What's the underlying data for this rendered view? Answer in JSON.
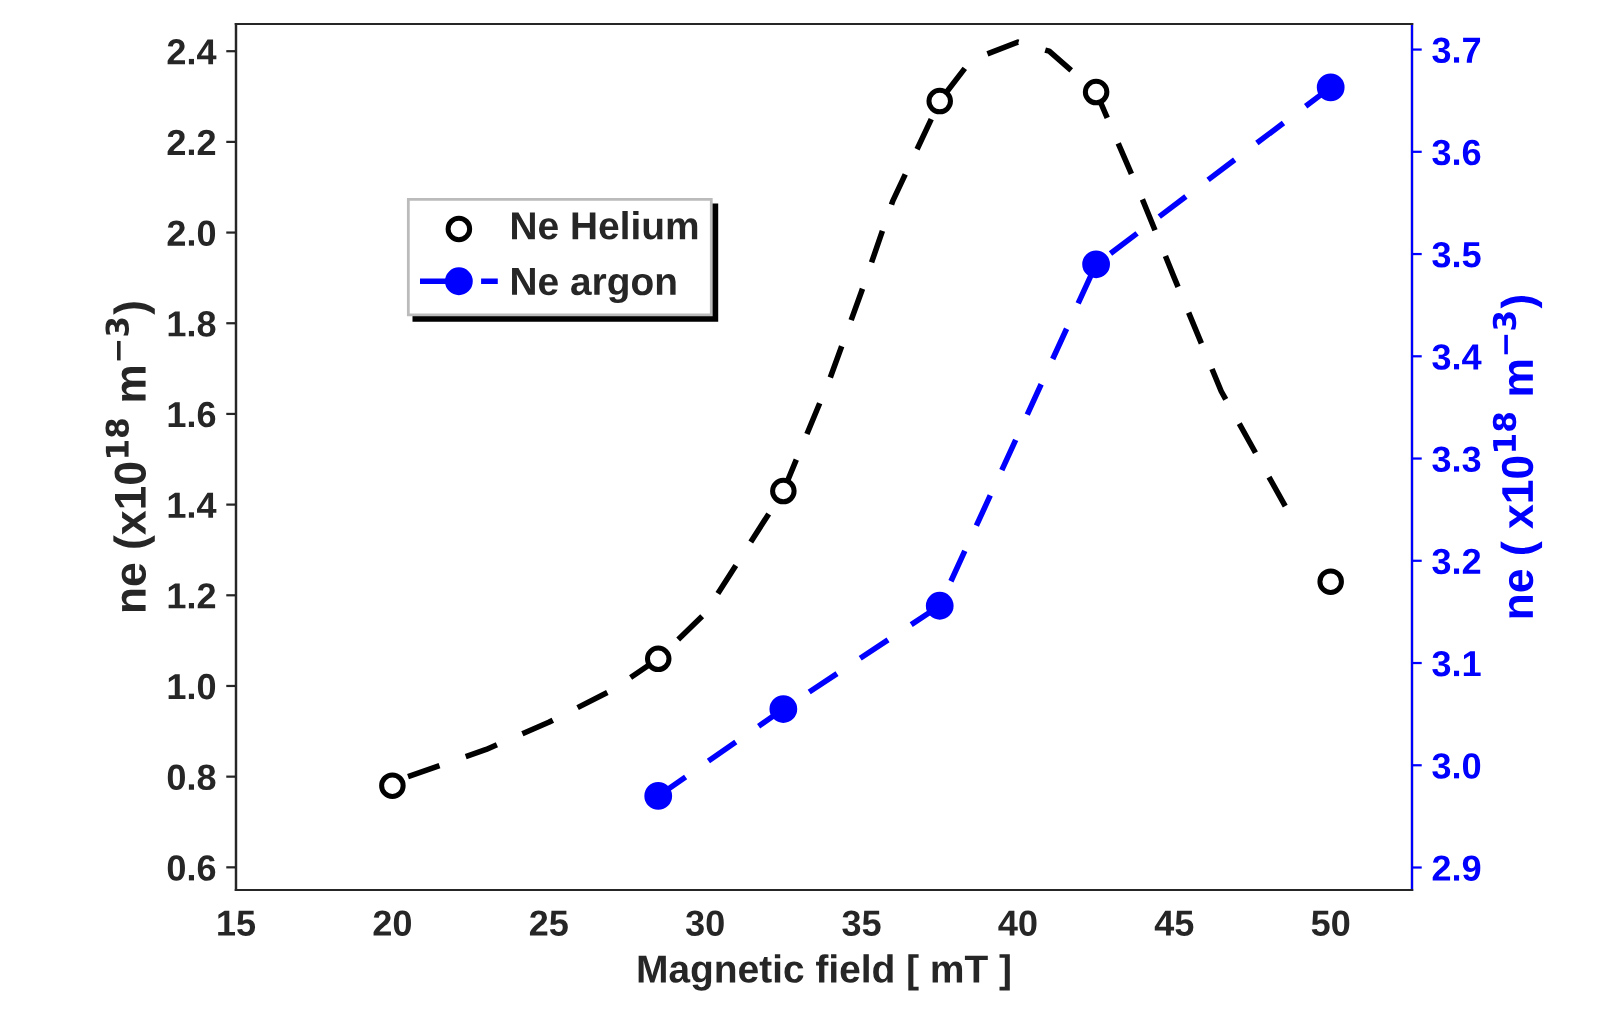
{
  "chart_data": {
    "type": "scatter",
    "xlabel": "Magnetic field [ mT ]",
    "ylabel": "ne (x10$^{18}$ m$^{−3}$)",
    "y2label": "ne ( x10$^{18}$ m$^{−3}$)",
    "xlim": [
      15,
      52.6
    ],
    "xticks": [
      15,
      20,
      25,
      30,
      35,
      40,
      45,
      50
    ],
    "ylim": [
      0.55,
      2.46
    ],
    "yticks": [
      {
        "value": 0.6,
        "label": "0.6"
      },
      {
        "value": 0.8,
        "label": "0.8"
      },
      {
        "value": 1.0,
        "label": "1.0"
      },
      {
        "value": 1.2,
        "label": "1.2"
      },
      {
        "value": 1.4,
        "label": "1.4"
      },
      {
        "value": 1.6,
        "label": "1.6"
      },
      {
        "value": 1.8,
        "label": "1.8"
      },
      {
        "value": 2.0,
        "label": "2.0"
      },
      {
        "value": 2.2,
        "label": "2.2"
      },
      {
        "value": 2.4,
        "label": "2.4"
      }
    ],
    "y2lim": [
      2.878,
      3.725
    ],
    "y2ticks": [
      {
        "value": 2.9,
        "label": "2.9"
      },
      {
        "value": 3.0,
        "label": "3.0"
      },
      {
        "value": 3.1,
        "label": "3.1"
      },
      {
        "value": 3.2,
        "label": "3.2"
      },
      {
        "value": 3.3,
        "label": "3.3"
      },
      {
        "value": 3.4,
        "label": "3.4"
      },
      {
        "value": 3.5,
        "label": "3.5"
      },
      {
        "value": 3.6,
        "label": "3.6"
      },
      {
        "value": 3.7,
        "label": "3.7"
      }
    ],
    "grid": false,
    "legend": "top left",
    "series": [
      {
        "name": "Ne Helium",
        "marker": "circle",
        "color": "#000000",
        "x": [
          20,
          28.5,
          32.5,
          37.5,
          42.5,
          50
        ],
        "values": [
          0.78,
          1.06,
          1.43,
          2.29,
          2.31,
          1.23
        ]
      },
      {
        "type": "line",
        "line_style": "dashed",
        "marker": "none",
        "color": "#000000",
        "x": [
          20.5,
          23,
          25,
          27,
          28.5,
          30,
          32.5,
          34,
          35,
          36,
          37.5,
          38.5,
          40,
          41,
          42.5,
          44,
          45,
          46.5,
          48.6
        ],
        "values": [
          0.8,
          0.86,
          0.92,
          0.99,
          1.06,
          1.16,
          1.43,
          1.68,
          1.87,
          2.07,
          2.29,
          2.38,
          2.42,
          2.4,
          2.31,
          2.07,
          1.9,
          1.65,
          1.39
        ]
      },
      {
        "name": "Ne argon",
        "type": "line",
        "axis": "y2",
        "line_style": "dashed",
        "marker": "circle",
        "color": "#0000ff",
        "x": [
          28.5,
          32.5,
          37.5,
          42.5,
          50
        ],
        "values": [
          2.97,
          3.055,
          3.156,
          3.49,
          3.663
        ]
      }
    ]
  }
}
